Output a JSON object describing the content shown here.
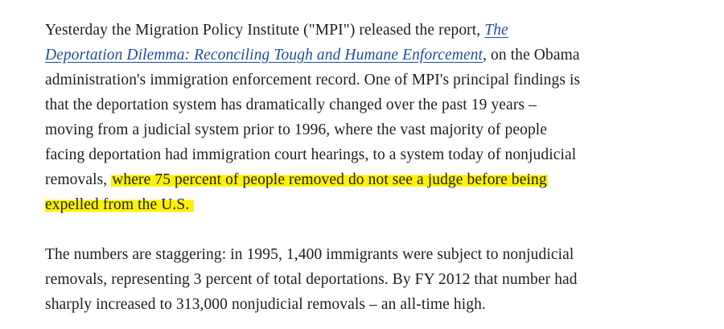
{
  "article": {
    "para1": {
      "line1_text": "Yesterday the Migration Policy Institute (\"MPI\") released the report, ",
      "link_part1": "The",
      "link_part2": "Deportation Dilemma: Reconciling Tough and Humane Enforcement",
      "line2_after_link": ", on the Obama",
      "line3": "administration's immigration enforcement record. One of MPI's principal findings is",
      "line4": "that the deportation system has dramatically changed over the past 19 years –",
      "line5": "moving from a judicial system prior to 1996, where the vast majority of people",
      "line6": "facing deportation had immigration court hearings, to a system today of nonjudicial",
      "line7_before_highlight": "removals, ",
      "line7_highlight": "where 75 percent of people removed do not see a judge before being",
      "line8_highlight": "expelled from the U.S",
      "line8_end": "."
    },
    "para2": {
      "line1": "The numbers are staggering: in 1995, 1,400 immigrants were subject to nonjudicial",
      "line2": "removals, representing 3 percent of total deportations. By FY 2012 that number had",
      "line3": "sharply increased to 313,000 nonjudicial removals – an all-time high."
    }
  },
  "colors": {
    "text": "#1e1e1e",
    "link": "#1f4e9c",
    "highlight": "#fff200",
    "background": "#ffffff"
  }
}
